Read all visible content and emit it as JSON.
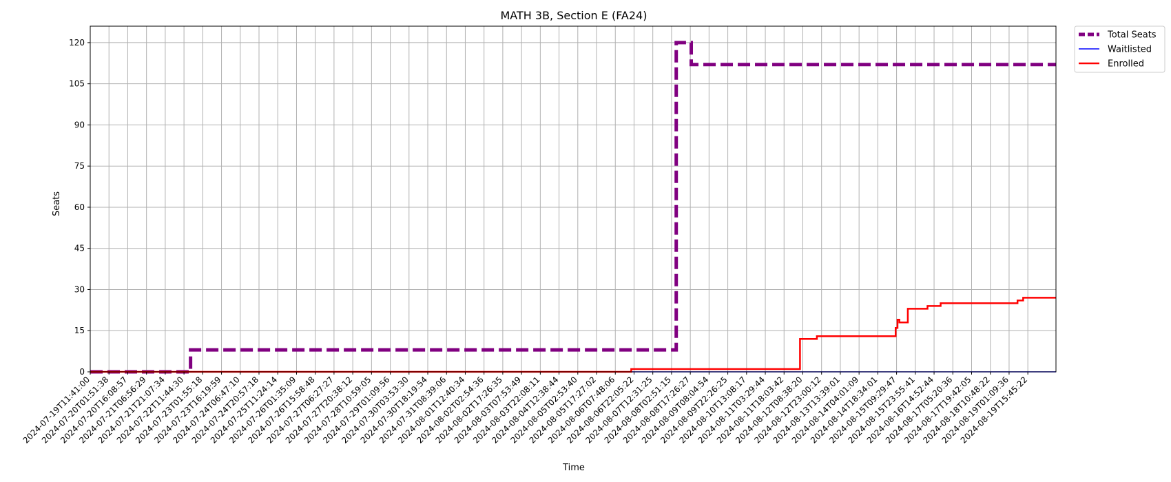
{
  "chart_data": {
    "type": "line",
    "title": "MATH 3B, Section E (FA24)",
    "xlabel": "Time",
    "ylabel": "Seats",
    "ylim": [
      0,
      126
    ],
    "yticks": [
      0,
      15,
      30,
      45,
      60,
      75,
      90,
      105,
      120
    ],
    "grid": true,
    "legend_position": "outside-top-right",
    "xticks": [
      "2024-07-19T11:41:00",
      "2024-07-20T01:51:38",
      "2024-07-20T16:08:57",
      "2024-07-21T06:56:29",
      "2024-07-21T21:07:34",
      "2024-07-22T11:44:30",
      "2024-07-23T01:55:18",
      "2024-07-23T16:19:59",
      "2024-07-24T06:47:10",
      "2024-07-24T20:57:18",
      "2024-07-25T11:24:14",
      "2024-07-26T01:35:09",
      "2024-07-26T15:58:48",
      "2024-07-27T06:27:27",
      "2024-07-27T20:38:12",
      "2024-07-28T10:59:05",
      "2024-07-29T01:09:56",
      "2024-07-30T03:53:30",
      "2024-07-30T18:19:54",
      "2024-07-31T08:39:06",
      "2024-08-01T12:40:34",
      "2024-08-02T02:54:36",
      "2024-08-02T17:26:35",
      "2024-08-03T07:53:49",
      "2024-08-03T22:08:11",
      "2024-08-04T12:38:44",
      "2024-08-05T02:53:40",
      "2024-08-05T17:27:02",
      "2024-08-06T07:48:06",
      "2024-08-06T22:05:22",
      "2024-08-07T12:31:25",
      "2024-08-08T02:51:15",
      "2024-08-08T17:26:27",
      "2024-08-09T08:04:54",
      "2024-08-09T22:26:25",
      "2024-08-10T13:08:17",
      "2024-08-11T03:29:44",
      "2024-08-11T18:03:42",
      "2024-08-12T08:38:20",
      "2024-08-12T23:00:12",
      "2024-08-13T13:39:01",
      "2024-08-14T04:01:09",
      "2024-08-14T18:34:01",
      "2024-08-15T09:29:47",
      "2024-08-15T23:55:41",
      "2024-08-16T14:52:44",
      "2024-08-17T05:20:36",
      "2024-08-17T19:42:05",
      "2024-08-18T10:48:22",
      "2024-08-19T01:09:36",
      "2024-08-19T15:45:22"
    ],
    "series": [
      {
        "name": "Total Seats",
        "color": "#800080",
        "style": "dashed",
        "step": true,
        "x_end": 51.5,
        "points": [
          [
            0,
            0
          ],
          [
            5.3,
            0
          ],
          [
            5.35,
            8
          ],
          [
            31.2,
            8
          ],
          [
            31.25,
            120
          ],
          [
            32.0,
            120
          ],
          [
            32.05,
            112
          ]
        ]
      },
      {
        "name": "Waitlisted",
        "color": "#0000ff",
        "style": "solid",
        "step": true,
        "x_end": 51.5,
        "points": [
          [
            0,
            0
          ]
        ]
      },
      {
        "name": "Enrolled",
        "color": "#ff0000",
        "style": "solid",
        "step": true,
        "x_end": 51.5,
        "points": [
          [
            0,
            0
          ],
          [
            28.8,
            0
          ],
          [
            28.85,
            1
          ],
          [
            37.8,
            1
          ],
          [
            37.85,
            12
          ],
          [
            38.7,
            12
          ],
          [
            38.75,
            13
          ],
          [
            42.8,
            13
          ],
          [
            42.95,
            16
          ],
          [
            43.05,
            19
          ],
          [
            43.15,
            18
          ],
          [
            43.5,
            18
          ],
          [
            43.6,
            23
          ],
          [
            44.6,
            23
          ],
          [
            44.65,
            24
          ],
          [
            45.3,
            24
          ],
          [
            45.35,
            25
          ],
          [
            49.4,
            25
          ],
          [
            49.45,
            26
          ],
          [
            49.7,
            26
          ],
          [
            49.75,
            27
          ]
        ]
      }
    ]
  }
}
